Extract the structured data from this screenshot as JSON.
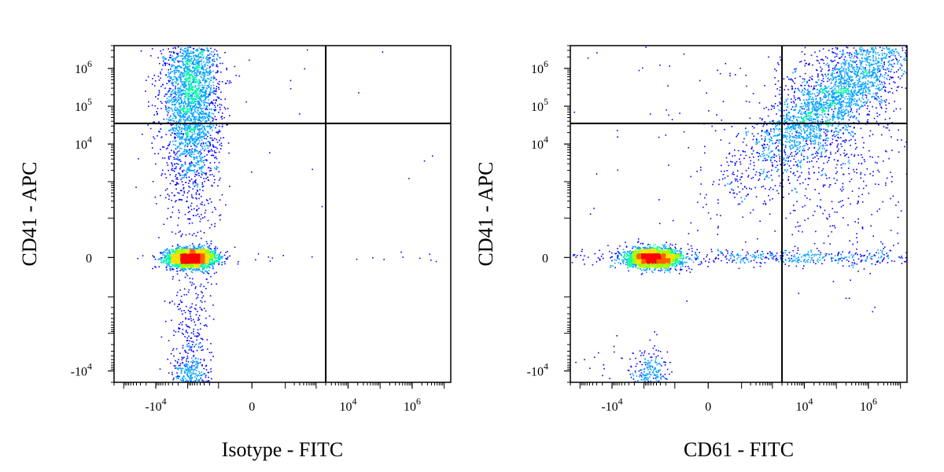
{
  "chart_data": [
    {
      "type": "scatter",
      "subtype": "flow-cytometry-density-dot-plot",
      "xlabel": "Isotype - FITC",
      "ylabel": "CD41 - APC",
      "scale": "biexponential",
      "x_ticks": [
        {
          "value": -10000,
          "base": "-10",
          "exp": "4"
        },
        {
          "value": 0,
          "base": "0",
          "exp": ""
        },
        {
          "value": 10000,
          "base": "10",
          "exp": "4"
        },
        {
          "value": 1000000,
          "base": "10",
          "exp": "6"
        }
      ],
      "y_ticks": [
        {
          "value": 1000000,
          "base": "10",
          "exp": "6"
        },
        {
          "value": 100000,
          "base": "10",
          "exp": "5"
        },
        {
          "value": 10000,
          "base": "10",
          "exp": "4"
        },
        {
          "value": 0,
          "base": "0",
          "exp": ""
        },
        {
          "value": -10000,
          "base": "-10",
          "exp": "4"
        }
      ],
      "quadrant_gate": {
        "x": 2000,
        "y": 35000
      },
      "populations": [
        {
          "x": -800,
          "y": 0,
          "sx": 0.09,
          "sy": 0.035,
          "n": 2600
        },
        {
          "x": -800,
          "y": 250000,
          "sx": 0.11,
          "sy": 0.32,
          "n": 2200
        },
        {
          "x": -800,
          "y": 35000,
          "sx": 0.1,
          "sy": 0.4,
          "n": 700
        },
        {
          "x": -800,
          "y": -5000,
          "sx": 0.08,
          "sy": 0.35,
          "n": 450
        },
        {
          "x": -800,
          "y": -12000,
          "sx": 0.07,
          "sy": 0.06,
          "n": 160
        },
        {
          "x": 150000,
          "y": 0,
          "sx": 1.6,
          "sy": 0.025,
          "n": 40
        },
        {
          "x": 20000,
          "y": 40000,
          "sx": 1.2,
          "sy": 0.45,
          "n": 45
        }
      ],
      "color_scale": [
        "#0000ff",
        "#00a0ff",
        "#00ffa0",
        "#a0ff00",
        "#ffe000",
        "#ff6000",
        "#ff0000"
      ]
    },
    {
      "type": "scatter",
      "subtype": "flow-cytometry-density-dot-plot",
      "xlabel": "CD61 - FITC",
      "ylabel": "CD41 - APC",
      "scale": "biexponential",
      "x_ticks": [
        {
          "value": -10000,
          "base": "-10",
          "exp": "4"
        },
        {
          "value": 0,
          "base": "0",
          "exp": ""
        },
        {
          "value": 10000,
          "base": "10",
          "exp": "4"
        },
        {
          "value": 1000000,
          "base": "10",
          "exp": "6"
        }
      ],
      "y_ticks": [
        {
          "value": 1000000,
          "base": "10",
          "exp": "6"
        },
        {
          "value": 100000,
          "base": "10",
          "exp": "5"
        },
        {
          "value": 10000,
          "base": "10",
          "exp": "4"
        },
        {
          "value": 0,
          "base": "0",
          "exp": ""
        },
        {
          "value": -10000,
          "base": "-10",
          "exp": "4"
        }
      ],
      "quadrant_gate": {
        "x": 2000,
        "y": 35000
      },
      "populations": [
        {
          "x": -500,
          "y": 0,
          "sx": 0.1,
          "sy": 0.035,
          "n": 2400
        },
        {
          "x": 100000,
          "y": 200000,
          "sx": 0.35,
          "sy": 0.3,
          "n": 2600,
          "corr": 0.85
        },
        {
          "x": 60000,
          "y": 20000,
          "sx": 0.3,
          "sy": 0.4,
          "n": 600
        },
        {
          "x": 8000,
          "y": 0,
          "sx": 0.55,
          "sy": 0.03,
          "n": 420
        },
        {
          "x": -700,
          "y": -12000,
          "sx": 0.08,
          "sy": 0.08,
          "n": 220
        },
        {
          "x": 15000,
          "y": 15000,
          "sx": 0.9,
          "sy": 0.6,
          "n": 260
        },
        {
          "x": -40000,
          "y": 0,
          "sx": 0.5,
          "sy": 0.03,
          "n": 120
        },
        {
          "x": -40000,
          "y": -15000,
          "sx": 0.4,
          "sy": 0.2,
          "n": 60
        }
      ],
      "color_scale": [
        "#0000ff",
        "#00a0ff",
        "#00ffa0",
        "#a0ff00",
        "#ffe000",
        "#ff6000",
        "#ff0000"
      ]
    }
  ]
}
